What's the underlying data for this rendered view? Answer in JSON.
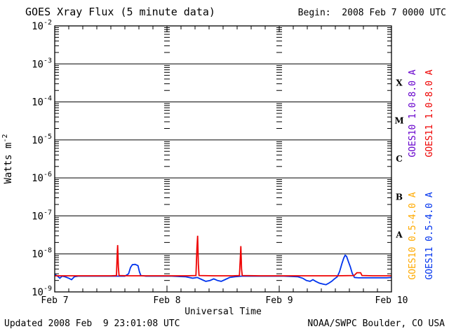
{
  "chart_data": {
    "type": "line",
    "title": "GOES Xray Flux (5 minute data)",
    "annotations": {
      "begin_label": "Begin:  2008 Feb 7 0000 UTC"
    },
    "x_axis": {
      "label": "Universal Time",
      "range_hours": [
        0,
        72
      ],
      "major_tick_hours": 24,
      "minor_tick_hours": 3,
      "tick_labels": [
        {
          "hour": 0,
          "label": "Feb 7"
        },
        {
          "hour": 24,
          "label": "Feb 8"
        },
        {
          "hour": 48,
          "label": "Feb 9"
        },
        {
          "hour": 72,
          "label": "Feb 10"
        }
      ],
      "grid_day_lines_hours": [
        24,
        48
      ]
    },
    "y_axis": {
      "label_base": "Watts m",
      "label_exp": "-2",
      "log_min_exp": -9,
      "log_max_exp": -2,
      "tick_exponents": [
        -2,
        -3,
        -4,
        -5,
        -6,
        -7,
        -8,
        -9
      ]
    },
    "flux_classes": [
      {
        "label": "X",
        "center_exp": -3.5
      },
      {
        "label": "M",
        "center_exp": -4.5
      },
      {
        "label": "C",
        "center_exp": -5.5
      },
      {
        "label": "B",
        "center_exp": -6.5
      },
      {
        "label": "A",
        "center_exp": -7.5
      }
    ],
    "series": [
      {
        "id": "goes10-long",
        "name": "GOES10 1.0-8.0 A",
        "color": "#6600cc",
        "points": []
      },
      {
        "id": "goes11-long",
        "name": "GOES11 1.0-8.0 A",
        "color": "#ee0000",
        "points": [
          [
            0,
            2.65e-09
          ],
          [
            4,
            2.65e-09
          ],
          [
            8,
            2.65e-09
          ],
          [
            12,
            2.65e-09
          ],
          [
            13.2,
            2.7e-09
          ],
          [
            13.35,
            9e-09
          ],
          [
            13.45,
            1.7e-08
          ],
          [
            13.6,
            4.5e-09
          ],
          [
            13.75,
            2.7e-09
          ],
          [
            16,
            2.65e-09
          ],
          [
            20,
            2.65e-09
          ],
          [
            24,
            2.65e-09
          ],
          [
            28,
            2.65e-09
          ],
          [
            30.2,
            2.7e-09
          ],
          [
            30.4,
            1.4e-08
          ],
          [
            30.55,
            3e-08
          ],
          [
            30.7,
            5.5e-09
          ],
          [
            30.85,
            2.7e-09
          ],
          [
            34,
            2.65e-09
          ],
          [
            38,
            2.65e-09
          ],
          [
            39.5,
            2.7e-09
          ],
          [
            39.7,
            9e-09
          ],
          [
            39.8,
            1.6e-08
          ],
          [
            39.95,
            4e-09
          ],
          [
            40.1,
            2.7e-09
          ],
          [
            44,
            2.65e-09
          ],
          [
            48,
            2.65e-09
          ],
          [
            52,
            2.65e-09
          ],
          [
            56,
            2.65e-09
          ],
          [
            60,
            2.65e-09
          ],
          [
            64,
            2.7e-09
          ],
          [
            64.6,
            3.2e-09
          ],
          [
            65.4,
            3.2e-09
          ],
          [
            65.7,
            2.7e-09
          ],
          [
            68,
            2.65e-09
          ],
          [
            72,
            2.65e-09
          ]
        ]
      },
      {
        "id": "goes10-short",
        "name": "GOES10 0.5-4.0 A",
        "color": "#ffaa00",
        "points": []
      },
      {
        "id": "goes11-short",
        "name": "GOES11 0.5-4.0 A",
        "color": "#0033ee",
        "points": [
          [
            0,
            2.9e-09
          ],
          [
            0.6,
            2.6e-09
          ],
          [
            1.1,
            2.3e-09
          ],
          [
            1.6,
            2.6e-09
          ],
          [
            2.2,
            2.5e-09
          ],
          [
            3.0,
            2.3e-09
          ],
          [
            3.6,
            2.1e-09
          ],
          [
            4.2,
            2.5e-09
          ],
          [
            5,
            2.6e-09
          ],
          [
            7,
            2.6e-09
          ],
          [
            9,
            2.6e-09
          ],
          [
            11,
            2.6e-09
          ],
          [
            13,
            2.6e-09
          ],
          [
            15,
            2.6e-09
          ],
          [
            15.8,
            3e-09
          ],
          [
            16.2,
            4.4e-09
          ],
          [
            16.6,
            5.2e-09
          ],
          [
            17.2,
            5.3e-09
          ],
          [
            17.8,
            4.9e-09
          ],
          [
            18.1,
            3.4e-09
          ],
          [
            18.4,
            2.7e-09
          ],
          [
            19.5,
            2.6e-09
          ],
          [
            22,
            2.6e-09
          ],
          [
            25,
            2.6e-09
          ],
          [
            28,
            2.5e-09
          ],
          [
            29.5,
            2.3e-09
          ],
          [
            30.5,
            2.4e-09
          ],
          [
            31.5,
            2.1e-09
          ],
          [
            32.3,
            1.9e-09
          ],
          [
            33.2,
            2e-09
          ],
          [
            34.0,
            2.2e-09
          ],
          [
            34.8,
            2e-09
          ],
          [
            35.6,
            1.9e-09
          ],
          [
            36.4,
            2.1e-09
          ],
          [
            37.4,
            2.4e-09
          ],
          [
            38.5,
            2.5e-09
          ],
          [
            40,
            2.6e-09
          ],
          [
            43,
            2.6e-09
          ],
          [
            46,
            2.6e-09
          ],
          [
            49,
            2.6e-09
          ],
          [
            52,
            2.5e-09
          ],
          [
            53,
            2.3e-09
          ],
          [
            53.8,
            2e-09
          ],
          [
            54.6,
            1.9e-09
          ],
          [
            55.2,
            2.1e-09
          ],
          [
            55.8,
            1.9e-09
          ],
          [
            56.6,
            1.7e-09
          ],
          [
            57.4,
            1.6e-09
          ],
          [
            58.0,
            1.55e-09
          ],
          [
            58.6,
            1.7e-09
          ],
          [
            59.2,
            1.9e-09
          ],
          [
            59.8,
            2.2e-09
          ],
          [
            60.4,
            2.5e-09
          ],
          [
            60.9,
            3.4e-09
          ],
          [
            61.4,
            5.5e-09
          ],
          [
            61.8,
            7.8e-09
          ],
          [
            62.1,
            9.2e-09
          ],
          [
            62.4,
            8.6e-09
          ],
          [
            62.8,
            6.2e-09
          ],
          [
            63.2,
            4.6e-09
          ],
          [
            63.6,
            3.1e-09
          ],
          [
            64.1,
            2.4e-09
          ],
          [
            65,
            2.35e-09
          ],
          [
            67,
            2.35e-09
          ],
          [
            69,
            2.35e-09
          ],
          [
            71,
            2.35e-09
          ],
          [
            72,
            2.4e-09
          ]
        ]
      }
    ],
    "legend_position": "right-rotated",
    "grid": "decade-horizontal-lines"
  },
  "footer": {
    "updated": "Updated 2008 Feb  9 23:01:08 UTC",
    "credit": "NOAA/SWPC Boulder, CO USA"
  }
}
